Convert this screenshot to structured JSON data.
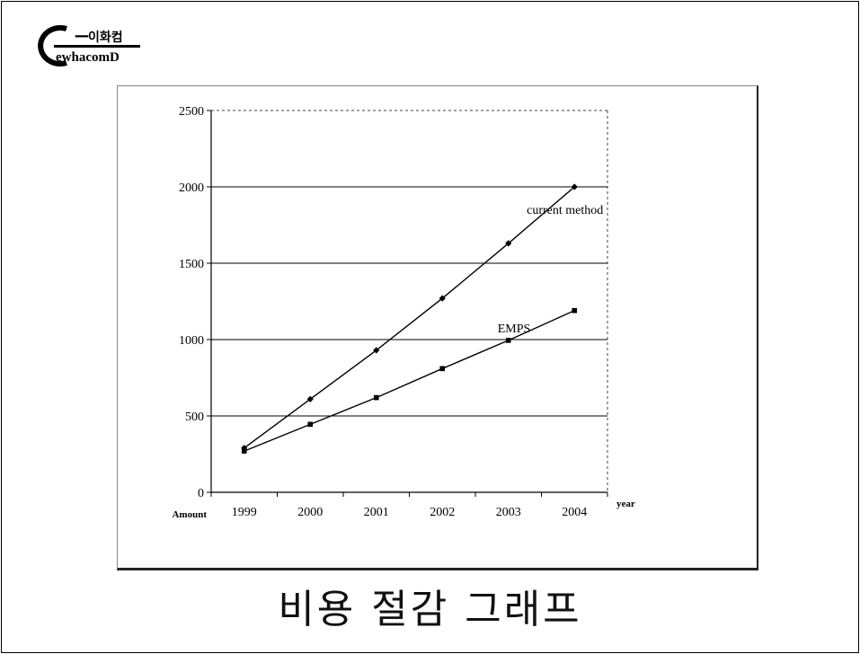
{
  "logo": {
    "text": "ewhacomD"
  },
  "caption": "비용 절감 그래프",
  "chart_data": {
    "type": "line",
    "categories": [
      "1999",
      "2000",
      "2001",
      "2002",
      "2003",
      "2004"
    ],
    "series": [
      {
        "name": "current method",
        "values": [
          290,
          610,
          930,
          1270,
          1630,
          2000
        ],
        "marker": "diamond"
      },
      {
        "name": "EMPS",
        "values": [
          270,
          445,
          620,
          810,
          995,
          1190
        ],
        "marker": "square"
      }
    ],
    "ylim": [
      0,
      2500
    ],
    "yticks": [
      0,
      500,
      1000,
      1500,
      2000,
      2500
    ],
    "xlabel": "year",
    "ylabel": "Amount",
    "grid": "horizontal",
    "colors": {
      "line": "#000000",
      "grid": "#000000"
    }
  }
}
